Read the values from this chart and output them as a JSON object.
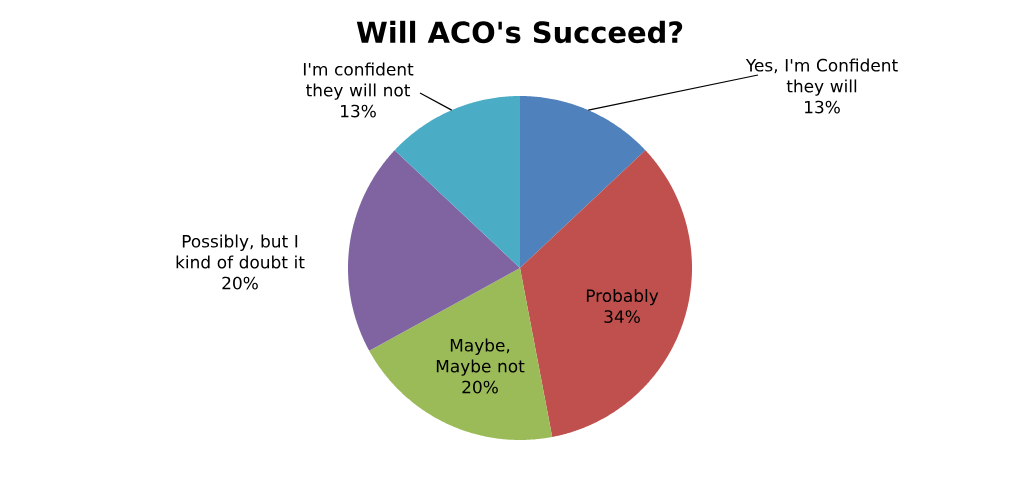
{
  "chart_data": {
    "type": "pie",
    "title": "Will ACO's Succeed?",
    "categories": [
      "Yes, I'm Confident they will",
      "Probably",
      "Maybe, Maybe not",
      "Possibly, but I kind of doubt it",
      "I'm confident they will not"
    ],
    "values": [
      13,
      34,
      20,
      20,
      13
    ],
    "value_labels": [
      "13%",
      "34%",
      "20%",
      "20%",
      "13%"
    ],
    "colors": [
      "#4f81bd",
      "#c0504d",
      "#9bbb59",
      "#8064a2",
      "#4bacc6"
    ]
  }
}
